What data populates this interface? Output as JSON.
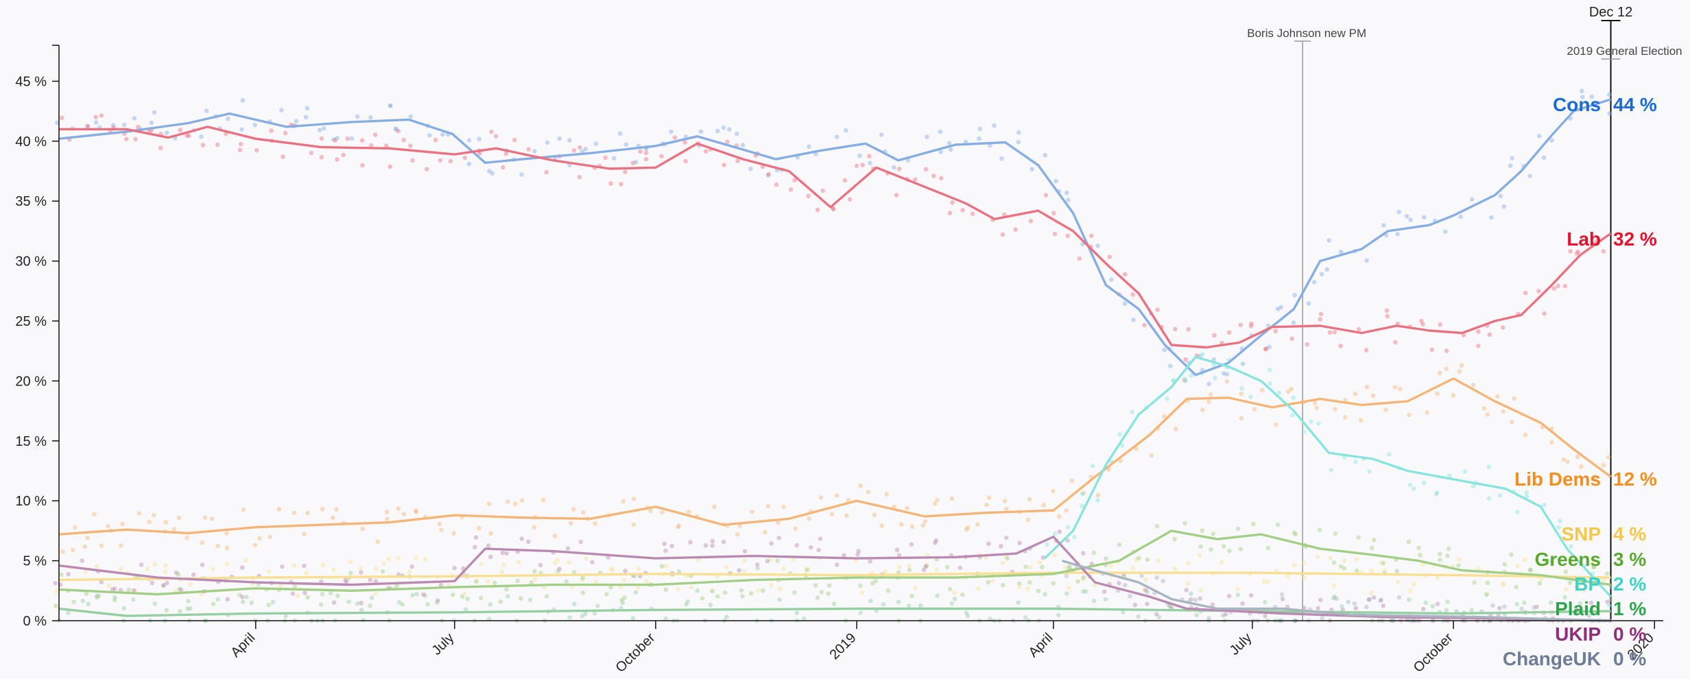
{
  "chart_data": {
    "type": "line",
    "title": "",
    "xlabel": "",
    "ylabel": "",
    "ylim": [
      0,
      48
    ],
    "y_ticks": [
      "0 %",
      "5 %",
      "10 %",
      "15 %",
      "20 %",
      "25 %",
      "30 %",
      "35 %",
      "40 %",
      "45 %"
    ],
    "y_tick_values": [
      0,
      5,
      10,
      15,
      20,
      25,
      30,
      35,
      40,
      45
    ],
    "x_ticks": [
      {
        "label": "April",
        "date": "2018-04-01"
      },
      {
        "label": "July",
        "date": "2018-07-01"
      },
      {
        "label": "October",
        "date": "2018-10-01"
      },
      {
        "label": "2019",
        "date": "2019-01-01"
      },
      {
        "label": "April",
        "date": "2019-04-01"
      },
      {
        "label": "July",
        "date": "2019-07-01"
      },
      {
        "label": "October",
        "date": "2019-10-01"
      },
      {
        "label": "2020",
        "date": "2020-01-01"
      }
    ],
    "x_range": [
      "2018-01-01",
      "2020-01-05"
    ],
    "grid": false,
    "legend": "end-labels-right",
    "events": [
      {
        "label": "Boris Johnson new PM",
        "date": "2019-07-24"
      },
      {
        "label": "2019 General Election",
        "date": "2019-12-12",
        "date_label": "Dec 12"
      }
    ],
    "series": [
      {
        "name": "Cons",
        "end_value": "44 %",
        "color": "#1a6cd0",
        "line_color": "#86aee3",
        "points": [
          [
            "2018-01-01",
            40.2
          ],
          [
            "2018-02-01",
            40.8
          ],
          [
            "2018-03-01",
            41.5
          ],
          [
            "2018-03-20",
            42.3
          ],
          [
            "2018-04-15",
            41.2
          ],
          [
            "2018-05-15",
            41.6
          ],
          [
            "2018-06-10",
            41.8
          ],
          [
            "2018-06-30",
            40.6
          ],
          [
            "2018-07-15",
            38.2
          ],
          [
            "2018-08-01",
            38.5
          ],
          [
            "2018-09-01",
            39.0
          ],
          [
            "2018-10-01",
            39.6
          ],
          [
            "2018-10-20",
            40.4
          ],
          [
            "2018-11-10",
            39.3
          ],
          [
            "2018-11-25",
            38.5
          ],
          [
            "2018-12-15",
            39.2
          ],
          [
            "2019-01-05",
            39.8
          ],
          [
            "2019-01-20",
            38.4
          ],
          [
            "2019-02-15",
            39.7
          ],
          [
            "2019-03-10",
            39.9
          ],
          [
            "2019-03-25",
            38.0
          ],
          [
            "2019-04-10",
            34.0
          ],
          [
            "2019-04-25",
            28.0
          ],
          [
            "2019-05-10",
            26.0
          ],
          [
            "2019-05-22",
            23.0
          ],
          [
            "2019-06-05",
            20.5
          ],
          [
            "2019-06-20",
            21.5
          ],
          [
            "2019-07-05",
            23.8
          ],
          [
            "2019-07-20",
            26.0
          ],
          [
            "2019-08-01",
            30.0
          ],
          [
            "2019-08-20",
            31.0
          ],
          [
            "2019-09-01",
            32.5
          ],
          [
            "2019-09-20",
            33.0
          ],
          [
            "2019-10-01",
            33.8
          ],
          [
            "2019-10-20",
            35.5
          ],
          [
            "2019-11-01",
            37.5
          ],
          [
            "2019-11-15",
            40.5
          ],
          [
            "2019-11-25",
            42.5
          ],
          [
            "2019-12-12",
            43.5
          ]
        ]
      },
      {
        "name": "Lab",
        "end_value": "32 %",
        "color": "#e3132f",
        "line_color": "#ea7182",
        "points": [
          [
            "2018-01-01",
            41.0
          ],
          [
            "2018-02-01",
            41.0
          ],
          [
            "2018-02-20",
            40.3
          ],
          [
            "2018-03-10",
            41.2
          ],
          [
            "2018-04-01",
            40.2
          ],
          [
            "2018-05-01",
            39.5
          ],
          [
            "2018-06-01",
            39.4
          ],
          [
            "2018-07-01",
            38.9
          ],
          [
            "2018-07-20",
            39.4
          ],
          [
            "2018-08-15",
            38.4
          ],
          [
            "2018-09-10",
            37.7
          ],
          [
            "2018-10-01",
            37.8
          ],
          [
            "2018-10-20",
            39.8
          ],
          [
            "2018-11-10",
            38.5
          ],
          [
            "2018-12-01",
            37.5
          ],
          [
            "2018-12-20",
            34.5
          ],
          [
            "2019-01-10",
            37.8
          ],
          [
            "2019-02-01",
            36.2
          ],
          [
            "2019-02-20",
            34.8
          ],
          [
            "2019-03-05",
            33.5
          ],
          [
            "2019-03-25",
            34.2
          ],
          [
            "2019-04-10",
            32.5
          ],
          [
            "2019-04-25",
            29.8
          ],
          [
            "2019-05-10",
            27.3
          ],
          [
            "2019-05-25",
            23.0
          ],
          [
            "2019-06-10",
            22.8
          ],
          [
            "2019-06-25",
            23.2
          ],
          [
            "2019-07-10",
            24.5
          ],
          [
            "2019-08-01",
            24.6
          ],
          [
            "2019-08-20",
            24.0
          ],
          [
            "2019-09-05",
            24.6
          ],
          [
            "2019-09-20",
            24.2
          ],
          [
            "2019-10-05",
            24.0
          ],
          [
            "2019-10-20",
            25.0
          ],
          [
            "2019-11-01",
            25.5
          ],
          [
            "2019-11-15",
            28.0
          ],
          [
            "2019-11-28",
            30.5
          ],
          [
            "2019-12-12",
            32.3
          ]
        ]
      },
      {
        "name": "Lib Dems",
        "end_value": "12 %",
        "color": "#f28e1f",
        "line_color": "#f4b577",
        "points": [
          [
            "2018-01-01",
            7.2
          ],
          [
            "2018-02-01",
            7.6
          ],
          [
            "2018-03-01",
            7.3
          ],
          [
            "2018-04-01",
            7.8
          ],
          [
            "2018-05-01",
            8.0
          ],
          [
            "2018-06-01",
            8.2
          ],
          [
            "2018-07-01",
            8.8
          ],
          [
            "2018-08-01",
            8.6
          ],
          [
            "2018-09-01",
            8.5
          ],
          [
            "2018-10-01",
            9.5
          ],
          [
            "2018-11-01",
            8.0
          ],
          [
            "2018-12-01",
            8.5
          ],
          [
            "2019-01-01",
            10.0
          ],
          [
            "2019-02-01",
            8.7
          ],
          [
            "2019-03-01",
            9.0
          ],
          [
            "2019-04-01",
            9.2
          ],
          [
            "2019-04-20",
            12.0
          ],
          [
            "2019-05-15",
            15.5
          ],
          [
            "2019-06-01",
            18.5
          ],
          [
            "2019-06-20",
            18.6
          ],
          [
            "2019-07-10",
            17.8
          ],
          [
            "2019-08-01",
            18.5
          ],
          [
            "2019-08-20",
            18.0
          ],
          [
            "2019-09-10",
            18.3
          ],
          [
            "2019-10-01",
            20.2
          ],
          [
            "2019-10-20",
            18.3
          ],
          [
            "2019-11-10",
            16.5
          ],
          [
            "2019-11-25",
            14.3
          ],
          [
            "2019-12-12",
            12.0
          ]
        ]
      },
      {
        "name": "SNP",
        "end_value": "4 %",
        "color": "#f5c84a",
        "line_color": "#f8df92",
        "points": [
          [
            "2018-01-01",
            3.4
          ],
          [
            "2018-04-01",
            3.6
          ],
          [
            "2018-07-01",
            3.7
          ],
          [
            "2018-10-01",
            3.9
          ],
          [
            "2019-01-01",
            3.8
          ],
          [
            "2019-04-01",
            4.0
          ],
          [
            "2019-07-01",
            4.0
          ],
          [
            "2019-10-01",
            3.8
          ],
          [
            "2019-12-12",
            3.6
          ]
        ]
      },
      {
        "name": "Greens",
        "end_value": "3 %",
        "color": "#58a832",
        "line_color": "#a2cf85",
        "points": [
          [
            "2018-01-01",
            2.6
          ],
          [
            "2018-02-15",
            2.2
          ],
          [
            "2018-04-01",
            2.7
          ],
          [
            "2018-05-15",
            2.5
          ],
          [
            "2018-07-01",
            2.8
          ],
          [
            "2018-08-15",
            3.0
          ],
          [
            "2018-10-01",
            3.0
          ],
          [
            "2018-11-15",
            3.4
          ],
          [
            "2019-01-01",
            3.6
          ],
          [
            "2019-02-15",
            3.6
          ],
          [
            "2019-04-01",
            3.9
          ],
          [
            "2019-05-01",
            5.0
          ],
          [
            "2019-05-25",
            7.5
          ],
          [
            "2019-06-15",
            6.8
          ],
          [
            "2019-07-05",
            7.2
          ],
          [
            "2019-08-01",
            6.0
          ],
          [
            "2019-08-25",
            5.5
          ],
          [
            "2019-09-15",
            5.0
          ],
          [
            "2019-10-05",
            4.2
          ],
          [
            "2019-11-10",
            3.8
          ],
          [
            "2019-12-12",
            3.0
          ]
        ]
      },
      {
        "name": "BP",
        "end_value": "2 %",
        "color": "#3ed2c9",
        "line_color": "#88e4de",
        "points": [
          [
            "2019-03-28",
            5.2
          ],
          [
            "2019-04-10",
            7.5
          ],
          [
            "2019-04-25",
            13.0
          ],
          [
            "2019-05-10",
            17.2
          ],
          [
            "2019-05-25",
            19.5
          ],
          [
            "2019-06-05",
            22.0
          ],
          [
            "2019-06-20",
            21.2
          ],
          [
            "2019-07-05",
            20.0
          ],
          [
            "2019-07-20",
            17.5
          ],
          [
            "2019-08-05",
            14.0
          ],
          [
            "2019-08-25",
            13.5
          ],
          [
            "2019-09-10",
            12.5
          ],
          [
            "2019-09-25",
            12.0
          ],
          [
            "2019-10-10",
            11.5
          ],
          [
            "2019-10-25",
            11.0
          ],
          [
            "2019-11-10",
            9.5
          ],
          [
            "2019-11-22",
            6.0
          ],
          [
            "2019-12-12",
            2.0
          ]
        ]
      },
      {
        "name": "Plaid",
        "end_value": "1 %",
        "color": "#2fa44d",
        "line_color": "#96cfa3",
        "points": [
          [
            "2018-01-01",
            1.0
          ],
          [
            "2018-02-01",
            0.4
          ],
          [
            "2018-04-01",
            0.6
          ],
          [
            "2018-07-01",
            0.7
          ],
          [
            "2018-10-01",
            0.9
          ],
          [
            "2019-01-01",
            1.0
          ],
          [
            "2019-04-01",
            1.0
          ],
          [
            "2019-07-01",
            0.8
          ],
          [
            "2019-10-01",
            0.6
          ],
          [
            "2019-12-12",
            0.8
          ]
        ]
      },
      {
        "name": "UKIP",
        "end_value": "0 %",
        "color": "#8e2f78",
        "line_color": "#bb8ab2",
        "points": [
          [
            "2018-01-01",
            4.6
          ],
          [
            "2018-02-15",
            3.6
          ],
          [
            "2018-04-01",
            3.2
          ],
          [
            "2018-05-15",
            3.0
          ],
          [
            "2018-07-01",
            3.3
          ],
          [
            "2018-07-15",
            6.0
          ],
          [
            "2018-08-15",
            5.8
          ],
          [
            "2018-10-01",
            5.2
          ],
          [
            "2018-11-15",
            5.4
          ],
          [
            "2019-01-01",
            5.2
          ],
          [
            "2019-02-15",
            5.3
          ],
          [
            "2019-03-15",
            5.6
          ],
          [
            "2019-04-01",
            7.0
          ],
          [
            "2019-04-20",
            3.2
          ],
          [
            "2019-05-15",
            2.0
          ],
          [
            "2019-06-01",
            1.0
          ],
          [
            "2019-07-15",
            0.6
          ],
          [
            "2019-09-01",
            0.3
          ],
          [
            "2019-10-15",
            0.2
          ],
          [
            "2019-12-12",
            0.0
          ]
        ]
      },
      {
        "name": "ChangeUK",
        "end_value": "0 %",
        "color": "#6c7d95",
        "line_color": "#a9b4c2",
        "points": [
          [
            "2019-04-05",
            5.0
          ],
          [
            "2019-04-20",
            4.2
          ],
          [
            "2019-05-10",
            3.2
          ],
          [
            "2019-05-25",
            1.8
          ],
          [
            "2019-06-15",
            1.0
          ],
          [
            "2019-07-15",
            1.0
          ],
          [
            "2019-08-15",
            0.5
          ],
          [
            "2019-10-15",
            0.3
          ],
          [
            "2019-12-12",
            0.0
          ]
        ]
      }
    ]
  }
}
